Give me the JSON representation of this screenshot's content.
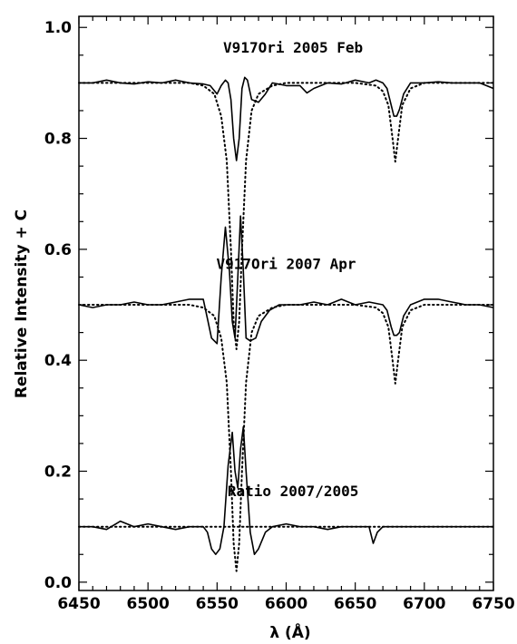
{
  "chart_data": {
    "type": "line",
    "xlabel": "λ (Å)",
    "ylabel": "Relative Intensity + C",
    "xlim": [
      6450,
      6750
    ],
    "ylim": [
      -0.015,
      1.02
    ],
    "grid": false,
    "x_ticks": [
      {
        "value": 6450,
        "label": "6450"
      },
      {
        "value": 6500,
        "label": "6500"
      },
      {
        "value": 6550,
        "label": "6550"
      },
      {
        "value": 6600,
        "label": "6600"
      },
      {
        "value": 6650,
        "label": "6650"
      },
      {
        "value": 6700,
        "label": "6700"
      },
      {
        "value": 6750,
        "label": "6750"
      }
    ],
    "y_ticks": [
      {
        "value": 0.0,
        "label": "0.0"
      },
      {
        "value": 0.2,
        "label": "0.2"
      },
      {
        "value": 0.4,
        "label": "0.4"
      },
      {
        "value": 0.6,
        "label": "0.6"
      },
      {
        "value": 0.8,
        "label": "0.8"
      },
      {
        "value": 1.0,
        "label": "1.0"
      }
    ],
    "annotations": [
      {
        "text": "V917Ori 2005 Feb",
        "x": 6605,
        "y": 0.955
      },
      {
        "text": "V917Ori 2007 Apr",
        "x": 6600,
        "y": 0.565
      },
      {
        "text": "Ratio 2007/2005",
        "x": 6605,
        "y": 0.155
      }
    ],
    "series": [
      {
        "style": "solid",
        "x": [
          6450,
          6460,
          6470,
          6480,
          6490,
          6500,
          6510,
          6520,
          6530,
          6540,
          6545,
          6550,
          6553,
          6556,
          6558,
          6560,
          6562,
          6564,
          6566,
          6568,
          6570,
          6572,
          6575,
          6580,
          6585,
          6590,
          6600,
          6610,
          6615,
          6620,
          6630,
          6640,
          6650,
          6660,
          6665,
          6670,
          6673,
          6676,
          6678,
          6680,
          6682,
          6685,
          6690,
          6700,
          6710,
          6720,
          6730,
          6740,
          6750
        ],
        "y": [
          0.9,
          0.9,
          0.905,
          0.9,
          0.898,
          0.902,
          0.9,
          0.905,
          0.9,
          0.898,
          0.895,
          0.88,
          0.895,
          0.905,
          0.9,
          0.87,
          0.8,
          0.76,
          0.8,
          0.89,
          0.91,
          0.905,
          0.87,
          0.865,
          0.88,
          0.9,
          0.895,
          0.895,
          0.882,
          0.89,
          0.9,
          0.898,
          0.905,
          0.9,
          0.905,
          0.9,
          0.89,
          0.86,
          0.84,
          0.84,
          0.852,
          0.88,
          0.9,
          0.9,
          0.902,
          0.9,
          0.9,
          0.9,
          0.89
        ]
      },
      {
        "style": "dotted",
        "x": [
          6450,
          6500,
          6530,
          6540,
          6548,
          6553,
          6557,
          6560,
          6562,
          6564,
          6566,
          6568,
          6571,
          6575,
          6580,
          6590,
          6600,
          6620,
          6650,
          6665,
          6670,
          6674,
          6677,
          6679,
          6681,
          6684,
          6690,
          6700,
          6750
        ],
        "y": [
          0.9,
          0.9,
          0.9,
          0.895,
          0.88,
          0.84,
          0.76,
          0.6,
          0.47,
          0.42,
          0.47,
          0.6,
          0.76,
          0.85,
          0.88,
          0.895,
          0.9,
          0.9,
          0.9,
          0.895,
          0.885,
          0.86,
          0.8,
          0.758,
          0.8,
          0.86,
          0.89,
          0.9,
          0.9
        ]
      },
      {
        "style": "solid",
        "x": [
          6450,
          6460,
          6470,
          6480,
          6490,
          6500,
          6510,
          6520,
          6530,
          6540,
          6543,
          6546,
          6550,
          6553,
          6556,
          6559,
          6561,
          6563,
          6565,
          6567,
          6569,
          6571,
          6574,
          6578,
          6582,
          6588,
          6595,
          6600,
          6610,
          6620,
          6630,
          6640,
          6650,
          6660,
          6670,
          6673,
          6676,
          6678,
          6680,
          6682,
          6685,
          6690,
          6700,
          6710,
          6720,
          6730,
          6740,
          6750
        ],
        "y": [
          0.5,
          0.495,
          0.5,
          0.5,
          0.505,
          0.5,
          0.5,
          0.505,
          0.51,
          0.51,
          0.475,
          0.44,
          0.43,
          0.55,
          0.64,
          0.56,
          0.47,
          0.44,
          0.55,
          0.66,
          0.56,
          0.44,
          0.435,
          0.44,
          0.47,
          0.49,
          0.5,
          0.5,
          0.5,
          0.505,
          0.5,
          0.51,
          0.5,
          0.505,
          0.5,
          0.49,
          0.46,
          0.445,
          0.445,
          0.45,
          0.48,
          0.5,
          0.51,
          0.51,
          0.505,
          0.5,
          0.5,
          0.495
        ]
      },
      {
        "style": "dotted",
        "x": [
          6450,
          6500,
          6530,
          6540,
          6548,
          6553,
          6557,
          6560,
          6562,
          6564,
          6566,
          6568,
          6571,
          6575,
          6580,
          6590,
          6600,
          6620,
          6650,
          6665,
          6670,
          6674,
          6677,
          6679,
          6681,
          6684,
          6690,
          6700,
          6750
        ],
        "y": [
          0.5,
          0.5,
          0.5,
          0.495,
          0.48,
          0.44,
          0.36,
          0.2,
          0.07,
          0.02,
          0.07,
          0.2,
          0.36,
          0.45,
          0.48,
          0.495,
          0.5,
          0.5,
          0.5,
          0.495,
          0.485,
          0.46,
          0.4,
          0.358,
          0.4,
          0.46,
          0.49,
          0.5,
          0.5
        ]
      },
      {
        "style": "solid",
        "x": [
          6450,
          6460,
          6470,
          6480,
          6490,
          6500,
          6510,
          6520,
          6530,
          6540,
          6543,
          6546,
          6549,
          6552,
          6555,
          6558,
          6561,
          6563,
          6565,
          6567,
          6569,
          6571,
          6574,
          6577,
          6580,
          6585,
          6590,
          6600,
          6610,
          6620,
          6630,
          6640,
          6650,
          6660,
          6663,
          6666,
          6670,
          6680,
          6690,
          6700,
          6710,
          6720,
          6730,
          6740,
          6750
        ],
        "y": [
          0.1,
          0.1,
          0.095,
          0.11,
          0.1,
          0.105,
          0.1,
          0.095,
          0.1,
          0.1,
          0.09,
          0.06,
          0.05,
          0.06,
          0.1,
          0.21,
          0.27,
          0.2,
          0.17,
          0.24,
          0.28,
          0.2,
          0.09,
          0.05,
          0.06,
          0.09,
          0.1,
          0.105,
          0.1,
          0.1,
          0.095,
          0.1,
          0.1,
          0.1,
          0.07,
          0.09,
          0.1,
          0.1,
          0.1,
          0.1,
          0.1,
          0.1,
          0.1,
          0.1,
          0.1
        ]
      },
      {
        "style": "dotted",
        "x": [
          6450,
          6750
        ],
        "y": [
          0.1,
          0.1
        ]
      }
    ]
  }
}
